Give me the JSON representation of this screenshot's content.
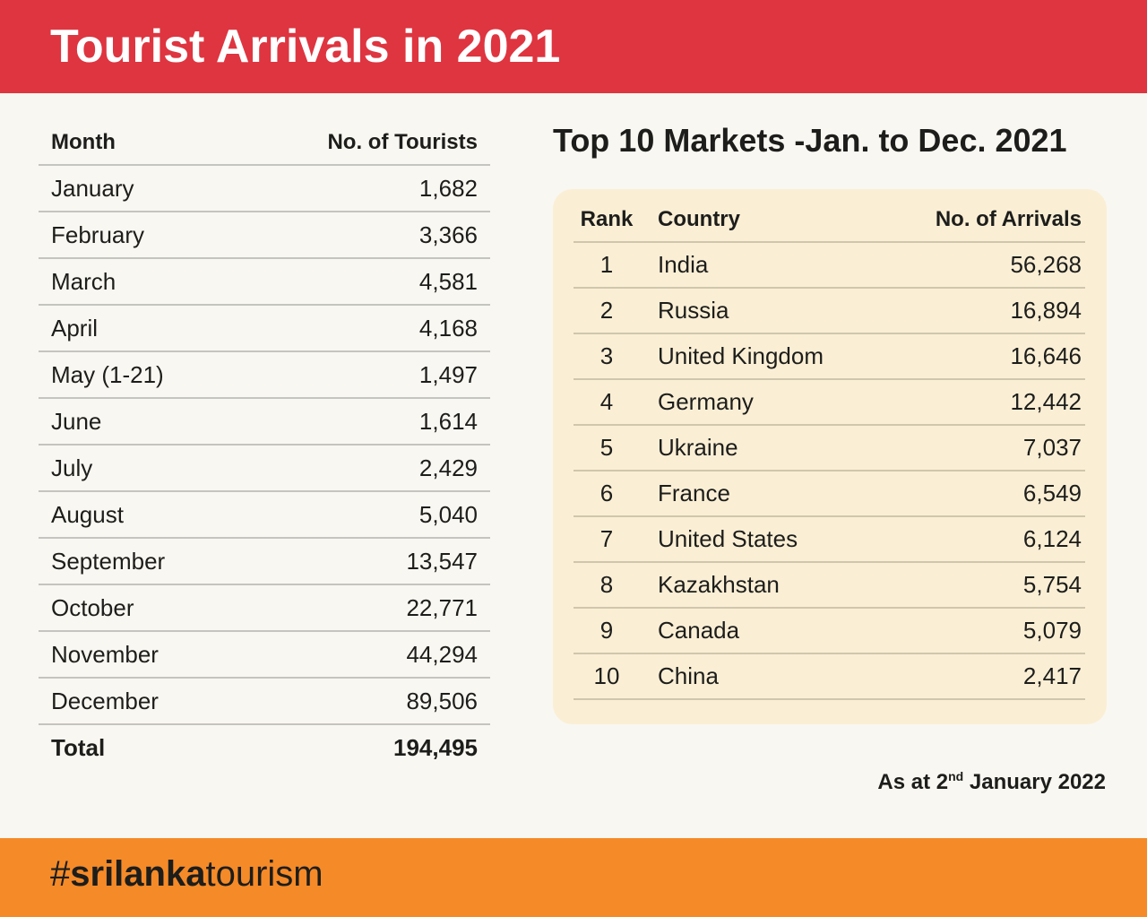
{
  "header": {
    "title": "Tourist Arrivals in 2021"
  },
  "monthly": {
    "col_month": "Month",
    "col_tourists": "No. of Tourists",
    "rows": [
      {
        "month": "January",
        "tourists": "1,682"
      },
      {
        "month": "February",
        "tourists": "3,366"
      },
      {
        "month": "March",
        "tourists": "4,581"
      },
      {
        "month": "April",
        "tourists": "4,168"
      },
      {
        "month": "May (1-21)",
        "tourists": "1,497"
      },
      {
        "month": "June",
        "tourists": "1,614"
      },
      {
        "month": "July",
        "tourists": "2,429"
      },
      {
        "month": "August",
        "tourists": "5,040"
      },
      {
        "month": "September",
        "tourists": "13,547"
      },
      {
        "month": "October",
        "tourists": "22,771"
      },
      {
        "month": "November",
        "tourists": "44,294"
      },
      {
        "month": "December",
        "tourists": "89,506"
      }
    ],
    "total_label": "Total",
    "total_value": "194,495"
  },
  "markets": {
    "title": "Top 10 Markets -Jan. to Dec. 2021",
    "col_rank": "Rank",
    "col_country": "Country",
    "col_arrivals": "No. of Arrivals",
    "rows": [
      {
        "rank": "1",
        "country": "India",
        "arrivals": "56,268"
      },
      {
        "rank": "2",
        "country": "Russia",
        "arrivals": "16,894"
      },
      {
        "rank": "3",
        "country": "United Kingdom",
        "arrivals": "16,646"
      },
      {
        "rank": "4",
        "country": "Germany",
        "arrivals": "12,442"
      },
      {
        "rank": "5",
        "country": "Ukraine",
        "arrivals": "7,037"
      },
      {
        "rank": "6",
        "country": "France",
        "arrivals": "6,549"
      },
      {
        "rank": "7",
        "country": "United States",
        "arrivals": "6,124"
      },
      {
        "rank": "8",
        "country": "Kazakhstan",
        "arrivals": "5,754"
      },
      {
        "rank": "9",
        "country": "Canada",
        "arrivals": "5,079"
      },
      {
        "rank": "10",
        "country": "China",
        "arrivals": "2,417"
      }
    ]
  },
  "as_at": {
    "prefix": "As at 2",
    "superscript": "nd",
    "suffix": " January 2022"
  },
  "footer": {
    "hashtag_prefix": "#",
    "hashtag_bold": "srilanka",
    "hashtag_rest": "tourism"
  },
  "colors": {
    "header_red": "#de3540",
    "footer_orange": "#f58a28",
    "card_cream": "#faefd5",
    "background": "#f9f7f1"
  }
}
